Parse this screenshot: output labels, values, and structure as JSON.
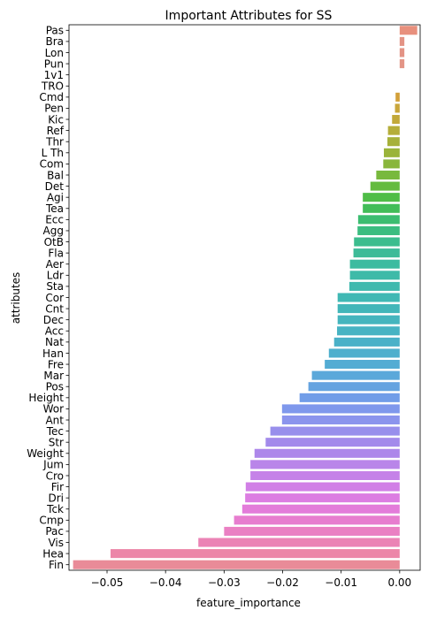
{
  "chart_data": {
    "type": "bar",
    "orientation": "horizontal",
    "title": "Important Attributes for SS",
    "xlabel": "feature_importance",
    "ylabel": "attributes",
    "xlim": [
      -0.0565,
      0.0035
    ],
    "xticks": [
      -0.05,
      -0.04,
      -0.03,
      -0.02,
      -0.01,
      0.0
    ],
    "xtick_labels": [
      "−0.05",
      "−0.04",
      "−0.03",
      "−0.02",
      "−0.01",
      "0.00"
    ],
    "categories": [
      "Pas",
      "Bra",
      "Lon",
      "Pun",
      "1v1",
      "TRO",
      "Cmd",
      "Pen",
      "Kic",
      "Ref",
      "Thr",
      "L Th",
      "Com",
      "Bal",
      "Det",
      "Agi",
      "Tea",
      "Ecc",
      "Agg",
      "OtB",
      "Fla",
      "Aer",
      "Ldr",
      "Sta",
      "Cor",
      "Cnt",
      "Dec",
      "Acc",
      "Nat",
      "Han",
      "Fre",
      "Mar",
      "Pos",
      "Height",
      "Wor",
      "Ant",
      "Tec",
      "Str",
      "Weight",
      "Jum",
      "Cro",
      "Fir",
      "Dri",
      "Tck",
      "Cmp",
      "Pac",
      "Vis",
      "Hea",
      "Fin"
    ],
    "values": [
      0.003,
      0.0008,
      0.0008,
      0.0008,
      0.0,
      0.0,
      -0.0007,
      -0.0008,
      -0.0013,
      -0.002,
      -0.0021,
      -0.0027,
      -0.0028,
      -0.004,
      -0.005,
      -0.0063,
      -0.0063,
      -0.0071,
      -0.0072,
      -0.0078,
      -0.0079,
      -0.0085,
      -0.0085,
      -0.0086,
      -0.0106,
      -0.0106,
      -0.0106,
      -0.0107,
      -0.0112,
      -0.0121,
      -0.0128,
      -0.015,
      -0.0156,
      -0.0171,
      -0.0201,
      -0.0201,
      -0.0221,
      -0.0229,
      -0.0248,
      -0.0255,
      -0.0255,
      -0.0263,
      -0.0264,
      -0.0269,
      -0.0283,
      -0.03,
      -0.0344,
      -0.0494,
      -0.0558
    ],
    "colors": [
      "#e8907d",
      "#e39385",
      "#e39385",
      "#e39586",
      "#e0963f",
      "#d99a3a",
      "#d2a03a",
      "#c9a63a",
      "#c2a93a",
      "#b5ae3a",
      "#a6b13a",
      "#9ab43a",
      "#89b63b",
      "#78b93d",
      "#64bb3f",
      "#4fbd47",
      "#42bd58",
      "#3cbd70",
      "#3bbd80",
      "#3cbd8e",
      "#3dbb98",
      "#3dbba0",
      "#3ebaa8",
      "#3fb9ae",
      "#40b8b4",
      "#42b6b9",
      "#45b5be",
      "#47b3c3",
      "#4ab1c8",
      "#4eafcd",
      "#54acd3",
      "#5ba8da",
      "#65a3e0",
      "#719de8",
      "#7f98ec",
      "#8b94ed",
      "#988fec",
      "#a38aeb",
      "#ad87ea",
      "#b985e9",
      "#c582e8",
      "#d17fe6",
      "#dc7de2",
      "#e37cda",
      "#e77dcf",
      "#ea80c3",
      "#eb83b5",
      "#ec86a8",
      "#e98b98"
    ]
  }
}
